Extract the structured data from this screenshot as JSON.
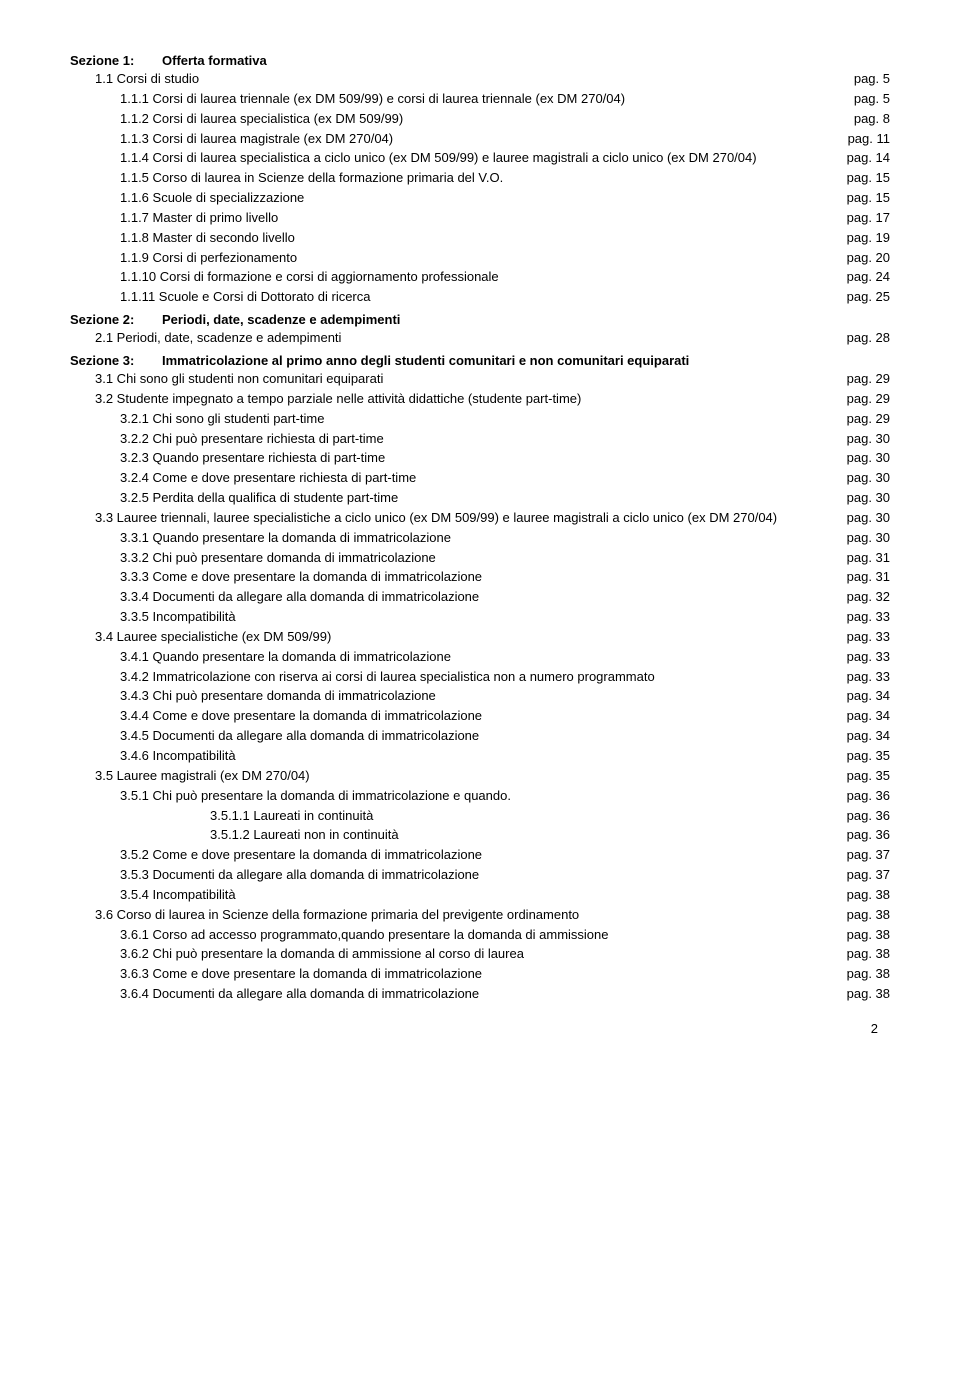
{
  "sections": {
    "s1": {
      "num": "Sezione 1:",
      "title": "Offerta formativa"
    },
    "s2": {
      "num": "Sezione 2:",
      "title": "Periodi, date, scadenze e adempimenti"
    },
    "s3": {
      "num": "Sezione 3:",
      "title": "Immatricolazione al primo anno degli studenti comunitari e non comunitari equiparati"
    }
  },
  "r": {
    "r1_1": {
      "t": "1.1   Corsi di studio",
      "p": "pag. 5"
    },
    "r1_1_1": {
      "t": "1.1.1   Corsi di laurea triennale (ex DM 509/99) e corsi di laurea triennale (ex DM 270/04)",
      "p": "pag. 5"
    },
    "r1_1_2": {
      "t": "1.1.2   Corsi di laurea specialistica (ex DM 509/99)",
      "p": "pag. 8"
    },
    "r1_1_3": {
      "t": "1.1.3   Corsi di laurea magistrale (ex DM 270/04)",
      "p": "pag. 11"
    },
    "r1_1_4": {
      "t": "1.1.4   Corsi di laurea specialistica a ciclo unico (ex DM 509/99) e lauree magistrali a ciclo unico (ex DM 270/04)",
      "p": "pag. 14"
    },
    "r1_1_5": {
      "t": "1.1.5   Corso di laurea in Scienze della formazione primaria del V.O.",
      "p": "pag. 15"
    },
    "r1_1_6": {
      "t": "1.1.6   Scuole di specializzazione",
      "p": "pag. 15"
    },
    "r1_1_7": {
      "t": "1.1.7   Master di primo livello",
      "p": "pag. 17"
    },
    "r1_1_8": {
      "t": "1.1.8   Master di secondo livello",
      "p": "pag. 19"
    },
    "r1_1_9": {
      "t": "1.1.9   Corsi di perfezionamento",
      "p": "pag. 20"
    },
    "r1_1_10": {
      "t": "1.1.10 Corsi di formazione e corsi di aggiornamento professionale",
      "p": "pag. 24"
    },
    "r1_1_11": {
      "t": "1.1.11 Scuole e Corsi di Dottorato di ricerca",
      "p": "pag. 25"
    },
    "r2_1": {
      "t": "2.1   Periodi, date, scadenze e adempimenti",
      "p": "pag. 28"
    },
    "r3_1": {
      "t": "3.1   Chi sono gli studenti non comunitari equiparati",
      "p": "pag. 29"
    },
    "r3_2": {
      "t": "3.2   Studente impegnato a tempo parziale nelle attività didattiche (studente part-time)",
      "p": "pag. 29"
    },
    "r3_2_1": {
      "t": "3.2.1   Chi sono gli studenti part-time",
      "p": "pag. 29"
    },
    "r3_2_2": {
      "t": "3.2.2   Chi può presentare richiesta di part-time",
      "p": "pag. 30"
    },
    "r3_2_3": {
      "t": "3.2.3   Quando presentare richiesta di part-time",
      "p": "pag. 30"
    },
    "r3_2_4": {
      "t": "3.2.4   Come e dove presentare richiesta di part-time",
      "p": "pag. 30"
    },
    "r3_2_5": {
      "t": "3.2.5   Perdita della qualifica di studente part-time",
      "p": "pag. 30"
    },
    "r3_3": {
      "t": "3.3   Lauree triennali, lauree specialistiche a ciclo unico (ex DM 509/99) e lauree magistrali a ciclo unico (ex DM 270/04)",
      "p": "pag. 30"
    },
    "r3_3_1": {
      "t": "3.3.1   Quando presentare la domanda di immatricolazione",
      "p": "pag. 30"
    },
    "r3_3_2": {
      "t": "3.3.2   Chi può presentare domanda di immatricolazione",
      "p": "pag. 31"
    },
    "r3_3_3": {
      "t": "3.3.3   Come e dove presentare la domanda di immatricolazione",
      "p": "pag. 31"
    },
    "r3_3_4": {
      "t": "3.3.4   Documenti da allegare alla domanda di immatricolazione",
      "p": "pag. 32"
    },
    "r3_3_5": {
      "t": "3.3.5   Incompatibilità",
      "p": "pag. 33"
    },
    "r3_4": {
      "t": "3.4   Lauree specialistiche (ex DM 509/99)",
      "p": "pag. 33"
    },
    "r3_4_1": {
      "t": "3.4.1   Quando presentare la domanda di immatricolazione",
      "p": "pag. 33"
    },
    "r3_4_2": {
      "t": "3.4.2   Immatricolazione con riserva ai corsi di laurea specialistica non a numero programmato",
      "p": "pag. 33"
    },
    "r3_4_3": {
      "t": "3.4.3   Chi può presentare domanda di immatricolazione",
      "p": "pag. 34"
    },
    "r3_4_4": {
      "t": "3.4.4   Come e dove presentare la domanda di immatricolazione",
      "p": "pag. 34"
    },
    "r3_4_5": {
      "t": "3.4.5   Documenti da allegare alla domanda di immatricolazione",
      "p": "pag. 34"
    },
    "r3_4_6": {
      "t": "3.4.6   Incompatibilità",
      "p": "pag. 35"
    },
    "r3_5": {
      "t": "3.5   Lauree magistrali (ex DM 270/04)",
      "p": "pag. 35"
    },
    "r3_5_1": {
      "t": "3.5.1   Chi può presentare la domanda di immatricolazione e quando.",
      "p": "pag. 36"
    },
    "r3_5_1_1": {
      "t": "3.5.1.1   Laureati in continuità",
      "p": "pag. 36"
    },
    "r3_5_1_2": {
      "t": "3.5.1.2   Laureati non in continuità",
      "p": "pag. 36"
    },
    "r3_5_2": {
      "t": "3.5.2   Come e dove presentare la domanda di immatricolazione",
      "p": "pag. 37"
    },
    "r3_5_3": {
      "t": "3.5.3   Documenti da allegare alla domanda di immatricolazione",
      "p": "pag. 37"
    },
    "r3_5_4": {
      "t": "3.5.4   Incompatibilità",
      "p": "pag. 38"
    },
    "r3_6": {
      "t": "3.6   Corso di laurea in Scienze della formazione primaria del previgente ordinamento",
      "p": "pag. 38"
    },
    "r3_6_1": {
      "t": "3.6.1   Corso ad accesso programmato,quando presentare la domanda di ammissione",
      "p": "pag. 38"
    },
    "r3_6_2": {
      "t": "3.6.2   Chi può presentare la domanda di ammissione al corso di laurea",
      "p": "pag. 38"
    },
    "r3_6_3": {
      "t": "3.6.3   Come e dove presentare la domanda di immatricolazione",
      "p": "pag. 38"
    },
    "r3_6_4": {
      "t": "3.6.4   Documenti da allegare alla domanda di immatricolazione",
      "p": "pag. 38"
    }
  },
  "pageNumber": "2"
}
